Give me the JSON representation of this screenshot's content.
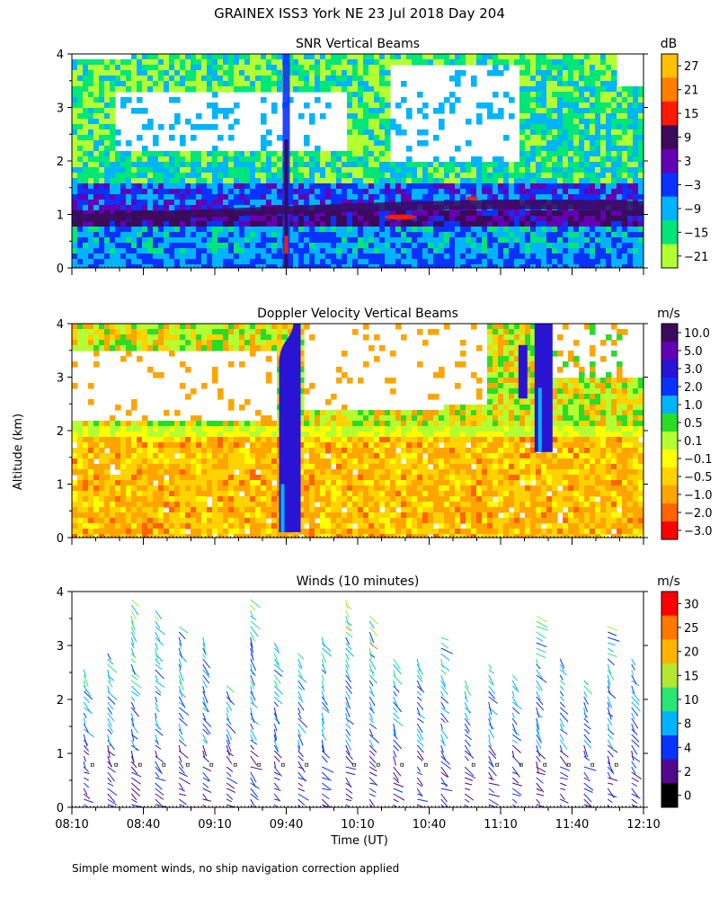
{
  "figure": {
    "title": "GRAINEX ISS3 York NE  23 Jul 2018 Day 204",
    "ylabel": "Altitude (km)",
    "xlabel": "Time (UT)",
    "footnote": "Simple moment winds, no ship navigation correction applied"
  },
  "chart_data": [
    {
      "type": "heatmap",
      "title": "SNR Vertical Beams",
      "x_ticks": [
        "08:10",
        "08:40",
        "09:10",
        "09:40",
        "10:10",
        "10:40",
        "11:10",
        "11:40",
        "12:10"
      ],
      "y_ticks": [
        "0",
        "1",
        "2",
        "3",
        "4"
      ],
      "ylim": [
        0,
        4
      ],
      "xlim": [
        "08:10",
        "12:10"
      ],
      "colorbar": {
        "unit": "dB",
        "labels": [
          "27",
          "21",
          "15",
          "9",
          "3",
          "−3",
          "−9",
          "−15",
          "−21"
        ],
        "colors": [
          "#ffc000",
          "#ff7f00",
          "#ff1a00",
          "#3c0a5a",
          "#6400b4",
          "#0a32ff",
          "#00b4ff",
          "#00e678",
          "#b4ff32"
        ]
      }
    },
    {
      "type": "heatmap",
      "title": "Doppler Velocity Vertical Beams",
      "x_ticks": [
        "08:10",
        "08:40",
        "09:10",
        "09:40",
        "10:10",
        "10:40",
        "11:10",
        "11:40",
        "12:10"
      ],
      "y_ticks": [
        "0",
        "1",
        "2",
        "3",
        "4"
      ],
      "ylim": [
        0,
        4
      ],
      "xlim": [
        "08:10",
        "12:10"
      ],
      "colorbar": {
        "unit": "m/s",
        "labels": [
          "10.0",
          "5.0",
          "3.0",
          "2.0",
          "1.0",
          "0.5",
          "0.1",
          "−0.1",
          "−0.5",
          "−1.0",
          "−2.0",
          "−3.0"
        ],
        "colors": [
          "#3c0a5a",
          "#6400b4",
          "#2814d2",
          "#0a32ff",
          "#00b4ff",
          "#28dc28",
          "#b4ff32",
          "#ffff00",
          "#ffd200",
          "#ffa500",
          "#ff6400",
          "#ff0000"
        ]
      }
    },
    {
      "type": "scatter",
      "title": "Winds (10 minutes)",
      "x_ticks": [
        "08:10",
        "08:40",
        "09:10",
        "09:40",
        "10:10",
        "10:40",
        "11:10",
        "11:40",
        "12:10"
      ],
      "y_ticks": [
        "0",
        "1",
        "2",
        "3",
        "4"
      ],
      "ylim": [
        0,
        4
      ],
      "xlim": [
        "08:10",
        "12:10"
      ],
      "colorbar": {
        "unit": "m/s",
        "labels": [
          "30",
          "25",
          "20",
          "15",
          "10",
          "8",
          "4",
          "2",
          "0"
        ],
        "colors": [
          "#ff0000",
          "#ff7800",
          "#ffb400",
          "#b4e632",
          "#28e678",
          "#00b4ff",
          "#0a32ff",
          "#50088c",
          "#000000"
        ]
      }
    }
  ]
}
